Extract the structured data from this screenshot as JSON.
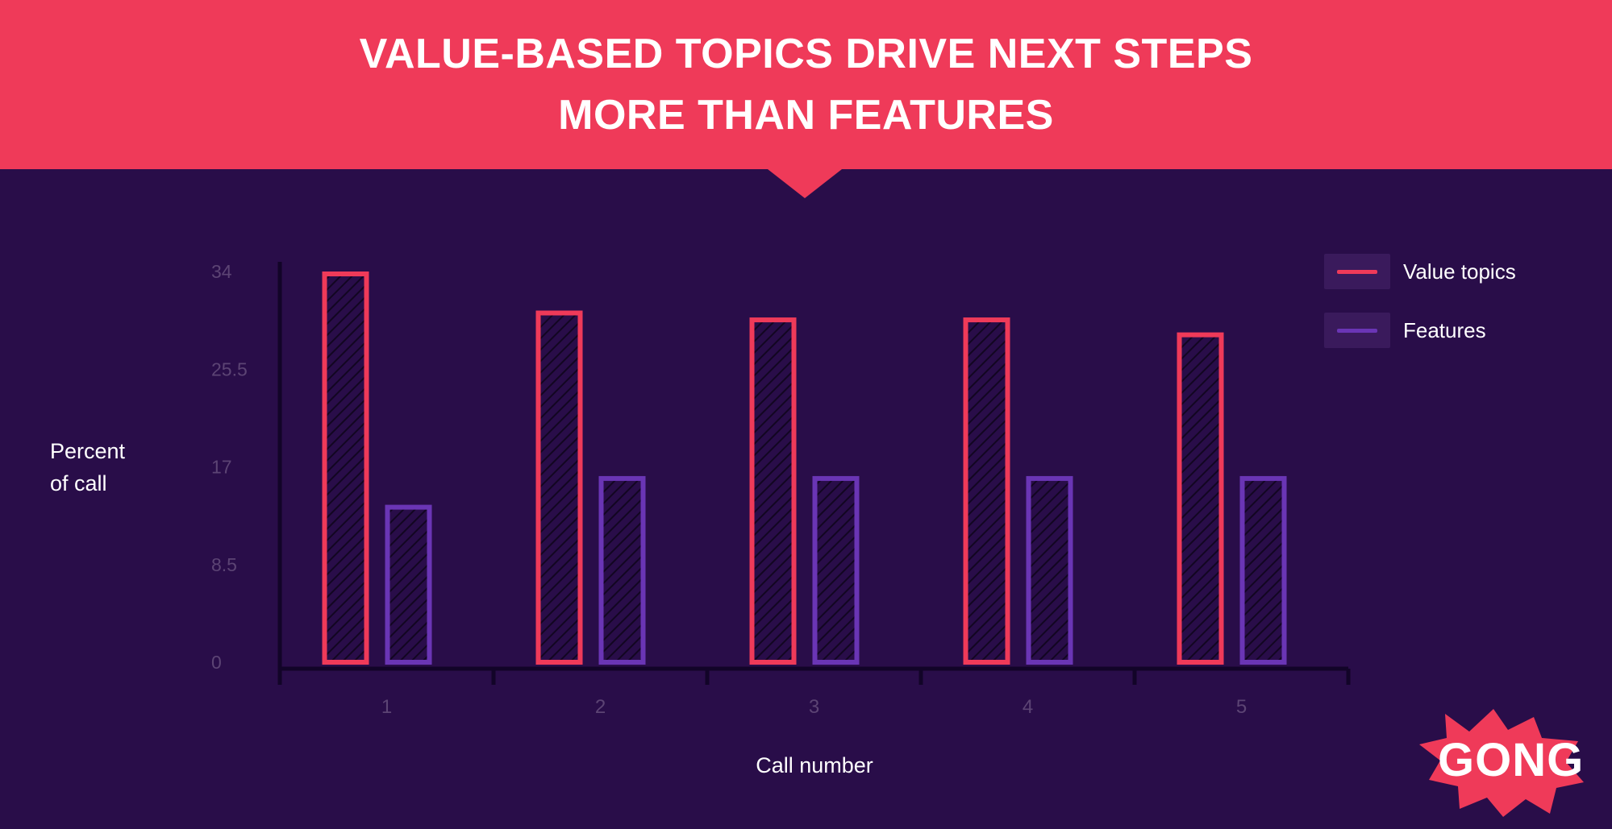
{
  "header": {
    "title_line1": "VALUE-BASED TOPICS DRIVE NEXT STEPS",
    "title_line2": "MORE THAN FEATURES"
  },
  "colors": {
    "banner": "#ef3a59",
    "background": "#290d49",
    "value_topics": "#ef3a59",
    "features": "#6a35b5"
  },
  "chart_data": {
    "type": "bar",
    "title": "VALUE-BASED TOPICS DRIVE NEXT STEPS MORE THAN FEATURES",
    "xlabel": "Call number",
    "ylabel": "Percent of call",
    "ylabel_lines": [
      "Percent",
      "of call"
    ],
    "categories": [
      "1",
      "2",
      "3",
      "4",
      "5"
    ],
    "yticks": [
      "0",
      "8.5",
      "17",
      "25.5",
      "34"
    ],
    "ylim": [
      0,
      34
    ],
    "grid": false,
    "legend_position": "top-right",
    "series": [
      {
        "name": "Value topics",
        "color": "#ef3a59",
        "values": [
          34,
          30.6,
          30,
          30,
          28.7
        ]
      },
      {
        "name": "Features",
        "color": "#6a35b5",
        "values": [
          13.7,
          16.2,
          16.2,
          16.2,
          16.2
        ]
      }
    ]
  },
  "logo": {
    "text": "GONG"
  }
}
